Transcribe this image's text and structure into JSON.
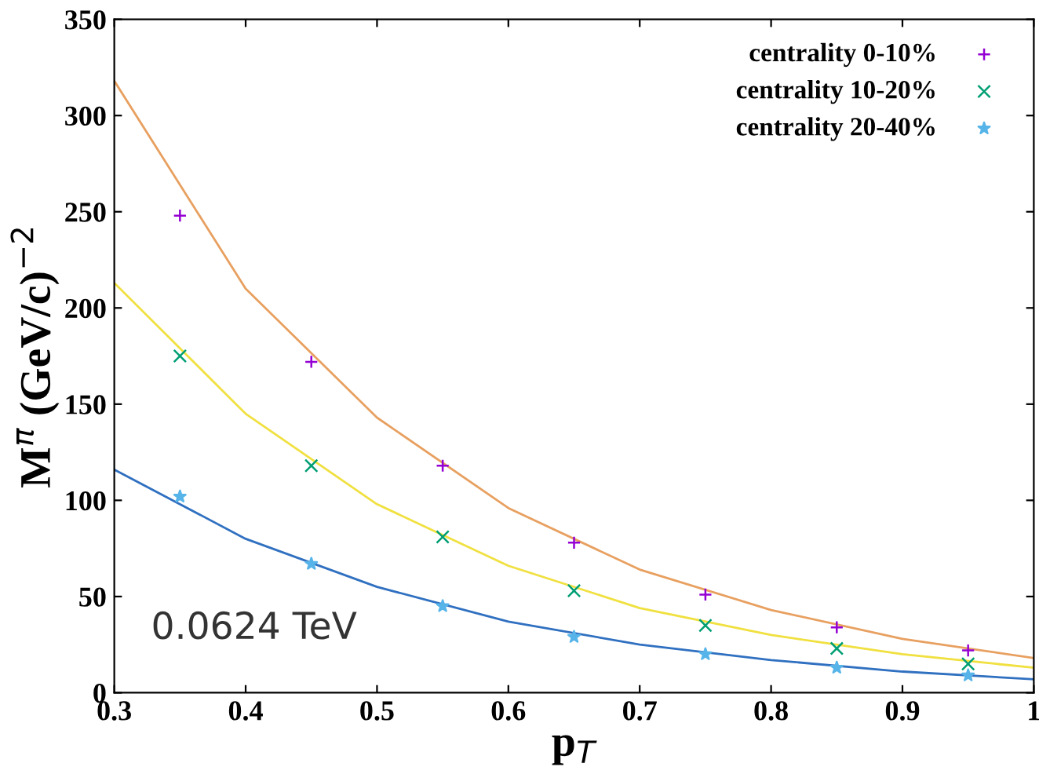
{
  "chart_data": {
    "type": "scatter",
    "xlabel": "p$_{T}$",
    "ylabel": "M$^{π}$ (GeV/c)$^{−2}$",
    "x": [
      0.35,
      0.45,
      0.55,
      0.65,
      0.75,
      0.85,
      0.95
    ],
    "series": [
      {
        "name": "centrality 0-10%",
        "color": "#9400d3",
        "marker": "plus",
        "values": [
          248,
          172,
          118,
          78,
          51,
          34,
          22
        ]
      },
      {
        "name": "centrality 10-20%",
        "color": "#009e73",
        "marker": "cross",
        "values": [
          175,
          118,
          81,
          53,
          35,
          23,
          15
        ]
      },
      {
        "name": "centrality 20-40%",
        "color": "#56b4e9",
        "marker": "star",
        "values": [
          102,
          67,
          45,
          29,
          20,
          13,
          9
        ]
      },
      {
        "type": "line",
        "color": "#e8a060",
        "x": [
          0.3,
          0.4,
          0.5,
          0.6,
          0.7,
          0.8,
          0.9,
          1.0
        ],
        "values": [
          318,
          210,
          143,
          96,
          64,
          43,
          28,
          18
        ]
      },
      {
        "type": "line",
        "color": "#f0e040",
        "x": [
          0.3,
          0.4,
          0.5,
          0.6,
          0.7,
          0.8,
          0.9,
          1.0
        ],
        "values": [
          213,
          145,
          98,
          66,
          44,
          30,
          20,
          13
        ]
      },
      {
        "type": "line",
        "color": "#3070c0",
        "x": [
          0.3,
          0.4,
          0.5,
          0.6,
          0.7,
          0.8,
          0.9,
          1.0
        ],
        "values": [
          116,
          80,
          55,
          37,
          25,
          17,
          11,
          7
        ]
      }
    ],
    "annotations": [
      "0.0624 TeV"
    ],
    "xlim": [
      0.3,
      1
    ],
    "xticks": [
      0.3,
      0.4,
      0.5,
      0.6,
      0.7,
      0.8,
      0.9,
      1
    ],
    "ylim": [
      0,
      350
    ],
    "yticks": [
      0,
      50,
      100,
      150,
      200,
      250,
      300,
      350
    ],
    "legend": "top right",
    "grid": false
  }
}
